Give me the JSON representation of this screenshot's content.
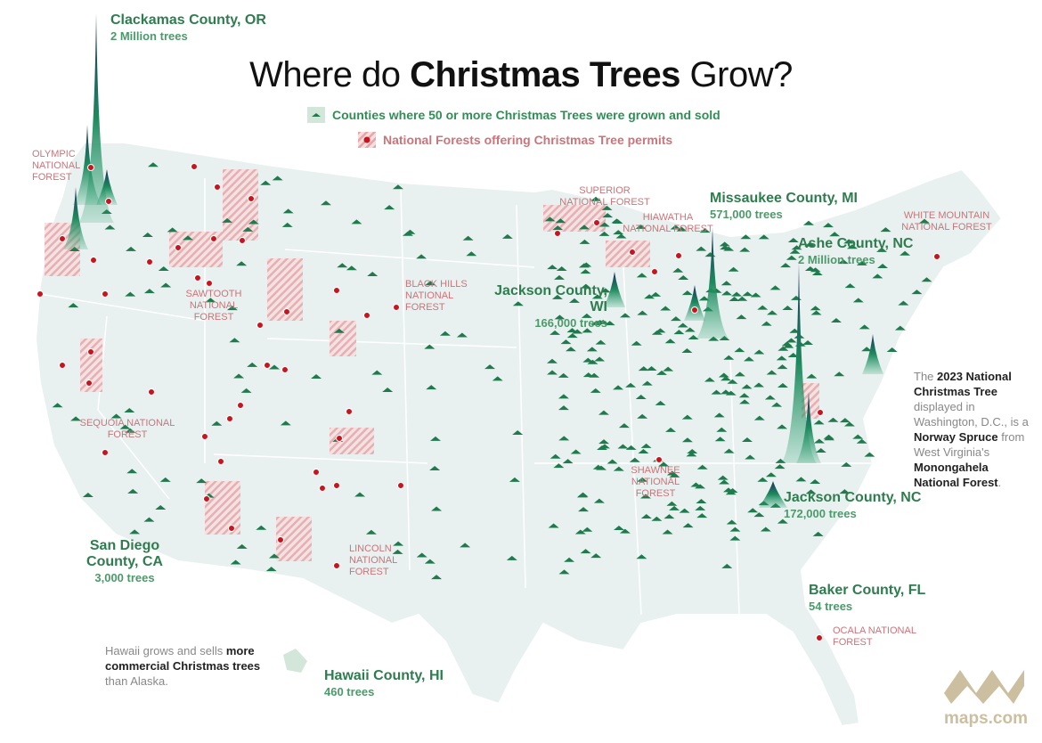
{
  "title": {
    "part1": "Where do ",
    "bold": "Christmas Trees",
    "part2": " Grow?"
  },
  "legend": [
    {
      "icon": "tree-county-icon",
      "label": "Counties where 50 or more Christmas Trees were grown and sold",
      "color": "#2f8f55"
    },
    {
      "icon": "national-forest-icon",
      "label": "National Forests offering Christmas Tree permits",
      "color": "#c9757a"
    }
  ],
  "counties": [
    {
      "name": "Clackamas County, OR",
      "value": "2 Million trees"
    },
    {
      "name": "Missaukee County, MI",
      "value": "571,000 trees"
    },
    {
      "name": "Ashe County, NC",
      "value": "2 Million trees"
    },
    {
      "name": "Jackson County, WI",
      "value": "166,000 trees"
    },
    {
      "name": "Jackson County, NC",
      "value": "172,000 trees"
    },
    {
      "name": "Baker County, FL",
      "value": "54 trees"
    },
    {
      "name": "San Diego County, CA",
      "value": "3,000 trees"
    },
    {
      "name": "Hawaii County, HI",
      "value": "460 trees"
    }
  ],
  "forests": [
    "Olympic National Forest",
    "Superior National Forest",
    "Hiawatha National Forest",
    "White Mountain National Forest",
    "Sawtooth National Forest",
    "Black Hills National Forest",
    "Sequoia National Forest",
    "Shawnee National Forest",
    "Lincoln National Forest",
    "Ocala National Forest"
  ],
  "notes": {
    "hawaii": {
      "a": "Hawaii grows and sells ",
      "b": "more commercial Christmas trees",
      "c": " than Alaska."
    },
    "tree": {
      "a": "The ",
      "b": "2023 National Christmas Tree",
      "c": " displayed in Washington, D.C., is a ",
      "d": "Norway Spruce",
      "e": " from West Virginia's ",
      "f": "Monongahela National Forest",
      "g": "."
    }
  },
  "brand": {
    "name": "maps.com",
    "color": "#cbbf9f"
  },
  "colors": {
    "land": "#e8f1f0",
    "county": "#d3e6da",
    "tree": "#1f7a4d",
    "spike_top": "#1b2f5e",
    "forest": "#c9141e",
    "forest_hatch": "#eab3b5"
  }
}
